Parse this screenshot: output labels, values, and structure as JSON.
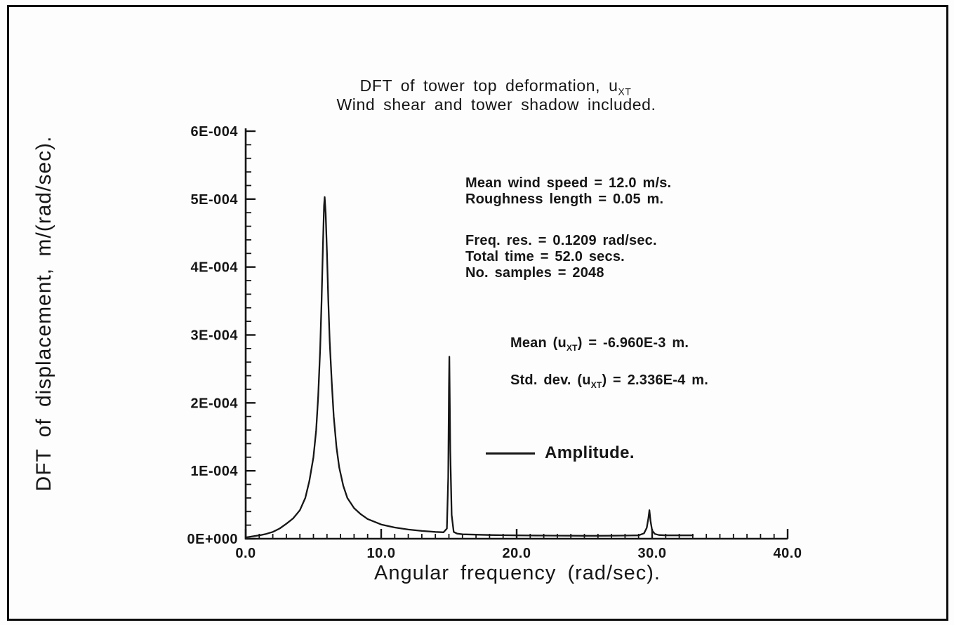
{
  "figure": {
    "title": {
      "pre": "DFT of tower top deformation, u",
      "sub": "XT",
      "line2": "Wind shear and tower shadow included."
    },
    "xlabel": "Angular frequency (rad/sec).",
    "ylabel": "DFT of displacement, m/(rad/sec)."
  },
  "annotations": {
    "wind_block": [
      "Mean wind speed = 12.0 m/s.",
      "Roughness length = 0.05 m."
    ],
    "sampling_block": [
      "Freq. res. = 0.1209 rad/sec.",
      "Total time = 52.0 secs.",
      "No. samples = 2048"
    ],
    "mean": {
      "pre": "Mean (u",
      "sub": "XT",
      "post": ") = -6.960E-3 m."
    },
    "std": {
      "pre": "Std. dev. (u",
      "sub": "XT",
      "post": ") = 2.336E-4 m."
    }
  },
  "legend": {
    "label": "Amplitude."
  },
  "chart_data": {
    "type": "line",
    "title": "DFT of tower top deformation, u_XT",
    "subtitle": "Wind shear and tower shadow included.",
    "xlabel": "Angular frequency (rad/sec).",
    "ylabel": "DFT of displacement, m/(rad/sec).",
    "xlim": [
      0,
      40
    ],
    "ylim": [
      0,
      0.0006
    ],
    "grid": false,
    "legend_position": "center-right",
    "x_ticks": [
      {
        "v": 0,
        "label": "0.0"
      },
      {
        "v": 10,
        "label": "10.0"
      },
      {
        "v": 20,
        "label": "20.0"
      },
      {
        "v": 30,
        "label": "30.0"
      },
      {
        "v": 40,
        "label": "40.0"
      }
    ],
    "y_ticks": [
      {
        "v": 0.0,
        "label": "0E+000"
      },
      {
        "v": 0.0001,
        "label": "1E-004"
      },
      {
        "v": 0.0002,
        "label": "2E-004"
      },
      {
        "v": 0.0003,
        "label": "3E-004"
      },
      {
        "v": 0.0004,
        "label": "4E-004"
      },
      {
        "v": 0.0005,
        "label": "5E-004"
      },
      {
        "v": 0.0006,
        "label": "6E-004"
      }
    ],
    "x_minor_step": 1,
    "y_minor_step": 2e-05,
    "y_scale": 0.0001,
    "notable_peaks": [
      {
        "x": 5.8,
        "y": 0.000503
      },
      {
        "x": 15.0,
        "y": 0.000268
      },
      {
        "x": 29.8,
        "y": 4.2e-05
      }
    ],
    "series": [
      {
        "name": "Amplitude.",
        "points": [
          [
            0,
            0.02
          ],
          [
            0.5,
            0.035
          ],
          [
            1,
            0.05
          ],
          [
            1.5,
            0.07
          ],
          [
            2,
            0.1
          ],
          [
            2.5,
            0.15
          ],
          [
            3,
            0.22
          ],
          [
            3.5,
            0.3
          ],
          [
            4,
            0.42
          ],
          [
            4.4,
            0.6
          ],
          [
            4.7,
            0.85
          ],
          [
            5,
            1.2
          ],
          [
            5.2,
            1.6
          ],
          [
            5.35,
            2.1
          ],
          [
            5.5,
            2.8
          ],
          [
            5.6,
            3.5
          ],
          [
            5.7,
            4.3
          ],
          [
            5.78,
            4.9
          ],
          [
            5.83,
            5.03
          ],
          [
            5.9,
            4.8
          ],
          [
            6,
            4.2
          ],
          [
            6.1,
            3.5
          ],
          [
            6.2,
            2.9
          ],
          [
            6.35,
            2.3
          ],
          [
            6.5,
            1.8
          ],
          [
            6.7,
            1.35
          ],
          [
            6.9,
            1.05
          ],
          [
            7.2,
            0.78
          ],
          [
            7.5,
            0.6
          ],
          [
            8,
            0.45
          ],
          [
            8.5,
            0.36
          ],
          [
            9,
            0.29
          ],
          [
            9.5,
            0.25
          ],
          [
            10,
            0.21
          ],
          [
            11,
            0.165
          ],
          [
            12,
            0.135
          ],
          [
            13,
            0.115
          ],
          [
            14,
            0.1
          ],
          [
            14.6,
            0.095
          ],
          [
            14.85,
            0.15
          ],
          [
            14.95,
            0.9
          ],
          [
            15,
            2.2
          ],
          [
            15.03,
            2.68
          ],
          [
            15.1,
            1.3
          ],
          [
            15.2,
            0.35
          ],
          [
            15.35,
            0.1
          ],
          [
            15.6,
            0.075
          ],
          [
            16,
            0.065
          ],
          [
            17,
            0.06
          ],
          [
            18,
            0.055
          ],
          [
            19,
            0.052
          ],
          [
            20,
            0.05
          ],
          [
            21,
            0.048
          ],
          [
            22,
            0.046
          ],
          [
            23,
            0.045
          ],
          [
            24,
            0.044
          ],
          [
            25,
            0.043
          ],
          [
            26,
            0.043
          ],
          [
            27,
            0.044
          ],
          [
            28,
            0.046
          ],
          [
            29,
            0.05
          ],
          [
            29.4,
            0.08
          ],
          [
            29.6,
            0.16
          ],
          [
            29.72,
            0.3
          ],
          [
            29.8,
            0.42
          ],
          [
            29.88,
            0.26
          ],
          [
            30,
            0.12
          ],
          [
            30.2,
            0.07
          ],
          [
            30.5,
            0.055
          ],
          [
            31,
            0.05
          ],
          [
            32,
            0.05
          ],
          [
            33,
            0.05
          ]
        ]
      }
    ]
  }
}
